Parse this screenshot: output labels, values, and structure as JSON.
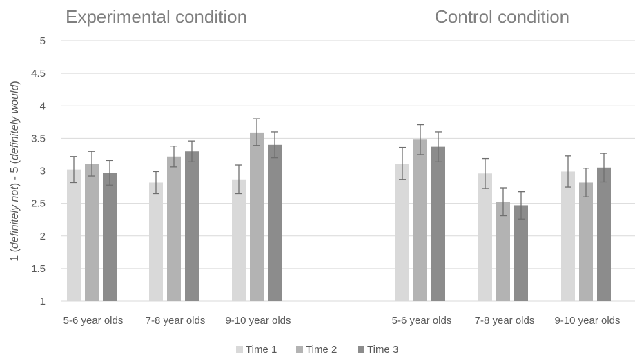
{
  "chart_data": {
    "type": "bar",
    "panels": [
      {
        "title": "Experimental condition",
        "categories": [
          "5-6 year olds",
          "7-8 year olds",
          "9-10 year olds"
        ],
        "series": [
          {
            "name": "Time 1",
            "values": [
              3.02,
              2.82,
              2.87
            ],
            "error_low": [
              2.82,
              2.65,
              2.65
            ],
            "error_high": [
              3.22,
              2.99,
              3.09
            ]
          },
          {
            "name": "Time 2",
            "values": [
              3.11,
              3.22,
              3.59
            ],
            "error_low": [
              2.92,
              3.06,
              3.39
            ],
            "error_high": [
              3.3,
              3.38,
              3.8
            ]
          },
          {
            "name": "Time 3",
            "values": [
              2.97,
              3.3,
              3.4
            ],
            "error_low": [
              2.78,
              3.14,
              3.2
            ],
            "error_high": [
              3.16,
              3.46,
              3.6
            ]
          }
        ]
      },
      {
        "title": "Control condition",
        "categories": [
          "5-6 year olds",
          "7-8 year olds",
          "9-10 year olds"
        ],
        "series": [
          {
            "name": "Time 1",
            "values": [
              3.11,
              2.96,
              2.99
            ],
            "error_low": [
              2.87,
              2.73,
              2.75
            ],
            "error_high": [
              3.36,
              3.19,
              3.23
            ]
          },
          {
            "name": "Time 2",
            "values": [
              3.48,
              2.52,
              2.82
            ],
            "error_low": [
              3.25,
              2.31,
              2.6
            ],
            "error_high": [
              3.71,
              2.74,
              3.04
            ]
          },
          {
            "name": "Time 3",
            "values": [
              3.37,
              2.47,
              3.05
            ],
            "error_low": [
              3.14,
              2.26,
              2.83
            ],
            "error_high": [
              3.6,
              2.68,
              3.27
            ]
          }
        ]
      }
    ],
    "ylabel_parts": [
      {
        "text": "1 (",
        "italic": false
      },
      {
        "text": "definitely not",
        "italic": true
      },
      {
        "text": ") - 5 (",
        "italic": false
      },
      {
        "text": "definitely would",
        "italic": true
      },
      {
        "text": ")",
        "italic": false
      }
    ],
    "ylim": [
      1,
      5
    ],
    "yticks": [
      "1",
      "1.5",
      "2",
      "2.5",
      "3",
      "3.5",
      "4",
      "4.5",
      "5"
    ],
    "grid": true,
    "legend_position": "bottom",
    "colors": {
      "Time 1": "#d9d9d9",
      "Time 2": "#b3b3b3",
      "Time 3": "#8c8c8c"
    },
    "error_bar_color": "#6f6f6f",
    "gridline_color": "#d9d9d9"
  }
}
